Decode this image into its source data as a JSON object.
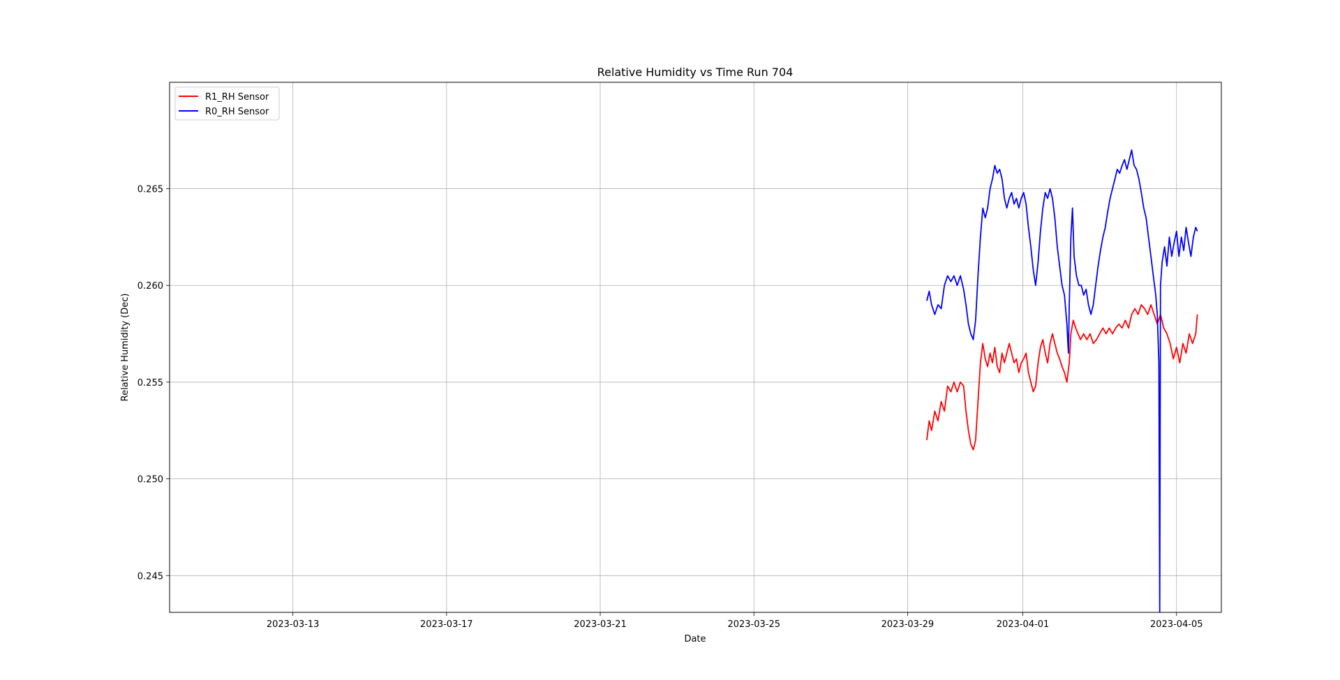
{
  "chart_data": {
    "type": "line",
    "title": "Relative Humidity vs Time Run 704",
    "xlabel": "Date",
    "ylabel": "Relative Humidity (Dec)",
    "xlim": [
      "2023-03-09T19:00",
      "2023-04-06T04:00"
    ],
    "ylim": [
      0.2431,
      0.2705
    ],
    "x_ticks": [
      "2023-03-13",
      "2023-03-17",
      "2023-03-21",
      "2023-03-25",
      "2023-03-29",
      "2023-04-01",
      "2023-04-05"
    ],
    "y_ticks": [
      "0.245",
      "0.250",
      "0.255",
      "0.260",
      "0.265"
    ],
    "grid": true,
    "legend": "upper-left",
    "series": [
      {
        "name": "R1_RH Sensor",
        "color": "#ff0000",
        "points": [
          [
            "2023-03-29T12:00",
            0.252
          ],
          [
            "2023-03-29T13:30",
            0.253
          ],
          [
            "2023-03-29T15:00",
            0.2525
          ],
          [
            "2023-03-29T17:00",
            0.2535
          ],
          [
            "2023-03-29T19:00",
            0.253
          ],
          [
            "2023-03-29T21:00",
            0.254
          ],
          [
            "2023-03-29T23:00",
            0.2535
          ],
          [
            "2023-03-30T01:00",
            0.2548
          ],
          [
            "2023-03-30T03:00",
            0.2545
          ],
          [
            "2023-03-30T05:00",
            0.255
          ],
          [
            "2023-03-30T07:00",
            0.2545
          ],
          [
            "2023-03-30T09:00",
            0.255
          ],
          [
            "2023-03-30T11:00",
            0.2548
          ],
          [
            "2023-03-30T12:30",
            0.2535
          ],
          [
            "2023-03-30T14:00",
            0.2525
          ],
          [
            "2023-03-30T15:30",
            0.2518
          ],
          [
            "2023-03-30T17:00",
            0.2515
          ],
          [
            "2023-03-30T18:30",
            0.252
          ],
          [
            "2023-03-30T20:00",
            0.254
          ],
          [
            "2023-03-30T21:30",
            0.256
          ],
          [
            "2023-03-30T23:00",
            0.257
          ],
          [
            "2023-03-31T00:30",
            0.2562
          ],
          [
            "2023-03-31T02:00",
            0.2558
          ],
          [
            "2023-03-31T03:30",
            0.2565
          ],
          [
            "2023-03-31T05:00",
            0.256
          ],
          [
            "2023-03-31T06:30",
            0.2568
          ],
          [
            "2023-03-31T08:00",
            0.2558
          ],
          [
            "2023-03-31T09:30",
            0.2555
          ],
          [
            "2023-03-31T11:00",
            0.2565
          ],
          [
            "2023-03-31T12:30",
            0.256
          ],
          [
            "2023-03-31T14:00",
            0.2565
          ],
          [
            "2023-03-31T15:30",
            0.257
          ],
          [
            "2023-03-31T17:00",
            0.2565
          ],
          [
            "2023-03-31T18:30",
            0.256
          ],
          [
            "2023-03-31T20:00",
            0.2562
          ],
          [
            "2023-03-31T21:30",
            0.2555
          ],
          [
            "2023-03-31T23:00",
            0.256
          ],
          [
            "2023-04-01T00:30",
            0.2562
          ],
          [
            "2023-04-01T02:00",
            0.2565
          ],
          [
            "2023-04-01T03:30",
            0.2555
          ],
          [
            "2023-04-01T05:00",
            0.255
          ],
          [
            "2023-04-01T06:30",
            0.2545
          ],
          [
            "2023-04-01T08:00",
            0.2548
          ],
          [
            "2023-04-01T09:30",
            0.256
          ],
          [
            "2023-04-01T11:00",
            0.2568
          ],
          [
            "2023-04-01T12:30",
            0.2572
          ],
          [
            "2023-04-01T14:00",
            0.2565
          ],
          [
            "2023-04-01T15:30",
            0.256
          ],
          [
            "2023-04-01T17:00",
            0.257
          ],
          [
            "2023-04-01T18:30",
            0.2575
          ],
          [
            "2023-04-01T20:00",
            0.257
          ],
          [
            "2023-04-01T21:30",
            0.2565
          ],
          [
            "2023-04-01T23:00",
            0.2562
          ],
          [
            "2023-04-02T00:30",
            0.2558
          ],
          [
            "2023-04-02T02:00",
            0.2555
          ],
          [
            "2023-04-02T03:30",
            0.255
          ],
          [
            "2023-04-02T05:00",
            0.256
          ],
          [
            "2023-04-02T06:00",
            0.2575
          ],
          [
            "2023-04-02T07:30",
            0.2582
          ],
          [
            "2023-04-02T09:00",
            0.2578
          ],
          [
            "2023-04-02T10:30",
            0.2575
          ],
          [
            "2023-04-02T12:00",
            0.2572
          ],
          [
            "2023-04-02T14:00",
            0.2575
          ],
          [
            "2023-04-02T16:00",
            0.2572
          ],
          [
            "2023-04-02T18:00",
            0.2575
          ],
          [
            "2023-04-02T20:00",
            0.257
          ],
          [
            "2023-04-02T22:00",
            0.2572
          ],
          [
            "2023-04-03T00:00",
            0.2575
          ],
          [
            "2023-04-03T02:00",
            0.2578
          ],
          [
            "2023-04-03T04:00",
            0.2575
          ],
          [
            "2023-04-03T06:00",
            0.2578
          ],
          [
            "2023-04-03T08:00",
            0.2575
          ],
          [
            "2023-04-03T10:00",
            0.2578
          ],
          [
            "2023-04-03T12:00",
            0.258
          ],
          [
            "2023-04-03T14:00",
            0.2578
          ],
          [
            "2023-04-03T16:00",
            0.2582
          ],
          [
            "2023-04-03T18:00",
            0.2578
          ],
          [
            "2023-04-03T20:00",
            0.2585
          ],
          [
            "2023-04-03T22:00",
            0.2588
          ],
          [
            "2023-04-04T00:00",
            0.2585
          ],
          [
            "2023-04-04T02:00",
            0.259
          ],
          [
            "2023-04-04T04:00",
            0.2588
          ],
          [
            "2023-04-04T06:00",
            0.2585
          ],
          [
            "2023-04-04T08:00",
            0.259
          ],
          [
            "2023-04-04T10:00",
            0.2585
          ],
          [
            "2023-04-04T12:00",
            0.258
          ],
          [
            "2023-04-04T14:00",
            0.2585
          ],
          [
            "2023-04-04T16:00",
            0.2578
          ],
          [
            "2023-04-04T18:00",
            0.2575
          ],
          [
            "2023-04-04T20:00",
            0.257
          ],
          [
            "2023-04-04T22:00",
            0.2562
          ],
          [
            "2023-04-05T00:00",
            0.2568
          ],
          [
            "2023-04-05T02:00",
            0.256
          ],
          [
            "2023-04-05T04:00",
            0.257
          ],
          [
            "2023-04-05T06:00",
            0.2565
          ],
          [
            "2023-04-05T08:00",
            0.2575
          ],
          [
            "2023-04-05T10:00",
            0.257
          ],
          [
            "2023-04-05T12:00",
            0.2575
          ],
          [
            "2023-04-05T13:00",
            0.2585
          ]
        ]
      },
      {
        "name": "R0_RH Sensor",
        "color": "#0000ff",
        "points": [
          [
            "2023-03-29T12:00",
            0.2592
          ],
          [
            "2023-03-29T13:30",
            0.2597
          ],
          [
            "2023-03-29T15:00",
            0.259
          ],
          [
            "2023-03-29T17:00",
            0.2585
          ],
          [
            "2023-03-29T19:00",
            0.259
          ],
          [
            "2023-03-29T21:00",
            0.2588
          ],
          [
            "2023-03-29T23:00",
            0.26
          ],
          [
            "2023-03-30T01:00",
            0.2605
          ],
          [
            "2023-03-30T03:00",
            0.2602
          ],
          [
            "2023-03-30T05:00",
            0.2605
          ],
          [
            "2023-03-30T07:00",
            0.26
          ],
          [
            "2023-03-30T09:00",
            0.2605
          ],
          [
            "2023-03-30T11:00",
            0.2598
          ],
          [
            "2023-03-30T12:30",
            0.259
          ],
          [
            "2023-03-30T14:00",
            0.258
          ],
          [
            "2023-03-30T15:30",
            0.2575
          ],
          [
            "2023-03-30T17:00",
            0.2572
          ],
          [
            "2023-03-30T18:30",
            0.2582
          ],
          [
            "2023-03-30T20:00",
            0.2605
          ],
          [
            "2023-03-30T21:30",
            0.2625
          ],
          [
            "2023-03-30T23:00",
            0.264
          ],
          [
            "2023-03-31T00:30",
            0.2635
          ],
          [
            "2023-03-31T02:00",
            0.264
          ],
          [
            "2023-03-31T03:30",
            0.265
          ],
          [
            "2023-03-31T05:00",
            0.2655
          ],
          [
            "2023-03-31T06:30",
            0.2662
          ],
          [
            "2023-03-31T08:00",
            0.2658
          ],
          [
            "2023-03-31T09:30",
            0.266
          ],
          [
            "2023-03-31T11:00",
            0.2655
          ],
          [
            "2023-03-31T12:30",
            0.2645
          ],
          [
            "2023-03-31T14:00",
            0.264
          ],
          [
            "2023-03-31T15:30",
            0.2645
          ],
          [
            "2023-03-31T17:00",
            0.2648
          ],
          [
            "2023-03-31T18:30",
            0.2642
          ],
          [
            "2023-03-31T20:00",
            0.2645
          ],
          [
            "2023-03-31T21:30",
            0.264
          ],
          [
            "2023-03-31T23:00",
            0.2645
          ],
          [
            "2023-04-01T00:30",
            0.2648
          ],
          [
            "2023-04-01T02:00",
            0.2642
          ],
          [
            "2023-04-01T03:30",
            0.263
          ],
          [
            "2023-04-01T05:00",
            0.262
          ],
          [
            "2023-04-01T06:30",
            0.2608
          ],
          [
            "2023-04-01T08:00",
            0.26
          ],
          [
            "2023-04-01T09:30",
            0.2612
          ],
          [
            "2023-04-01T11:00",
            0.2628
          ],
          [
            "2023-04-01T12:30",
            0.264
          ],
          [
            "2023-04-01T14:00",
            0.2648
          ],
          [
            "2023-04-01T15:30",
            0.2645
          ],
          [
            "2023-04-01T17:00",
            0.265
          ],
          [
            "2023-04-01T18:30",
            0.2645
          ],
          [
            "2023-04-01T20:00",
            0.2635
          ],
          [
            "2023-04-01T21:30",
            0.262
          ],
          [
            "2023-04-01T23:00",
            0.261
          ],
          [
            "2023-04-02T00:30",
            0.26
          ],
          [
            "2023-04-02T02:00",
            0.2595
          ],
          [
            "2023-04-02T03:30",
            0.258
          ],
          [
            "2023-04-02T04:30",
            0.2565
          ],
          [
            "2023-04-02T05:00",
            0.259
          ],
          [
            "2023-04-02T06:00",
            0.2625
          ],
          [
            "2023-04-02T07:00",
            0.264
          ],
          [
            "2023-04-02T08:00",
            0.2615
          ],
          [
            "2023-04-02T09:30",
            0.2605
          ],
          [
            "2023-04-02T11:00",
            0.26
          ],
          [
            "2023-04-02T12:30",
            0.26
          ],
          [
            "2023-04-02T14:00",
            0.2595
          ],
          [
            "2023-04-02T15:30",
            0.2598
          ],
          [
            "2023-04-02T17:00",
            0.259
          ],
          [
            "2023-04-02T18:30",
            0.2585
          ],
          [
            "2023-04-02T20:00",
            0.259
          ],
          [
            "2023-04-02T21:30",
            0.26
          ],
          [
            "2023-04-02T23:00",
            0.261
          ],
          [
            "2023-04-03T00:30",
            0.2618
          ],
          [
            "2023-04-03T02:00",
            0.2625
          ],
          [
            "2023-04-03T03:30",
            0.263
          ],
          [
            "2023-04-03T05:00",
            0.2638
          ],
          [
            "2023-04-03T06:30",
            0.2645
          ],
          [
            "2023-04-03T08:00",
            0.265
          ],
          [
            "2023-04-03T09:30",
            0.2655
          ],
          [
            "2023-04-03T11:00",
            0.266
          ],
          [
            "2023-04-03T12:30",
            0.2658
          ],
          [
            "2023-04-03T14:00",
            0.2662
          ],
          [
            "2023-04-03T15:30",
            0.2665
          ],
          [
            "2023-04-03T17:00",
            0.266
          ],
          [
            "2023-04-03T18:30",
            0.2665
          ],
          [
            "2023-04-03T20:00",
            0.267
          ],
          [
            "2023-04-03T21:30",
            0.2662
          ],
          [
            "2023-04-03T23:00",
            0.266
          ],
          [
            "2023-04-04T00:30",
            0.2655
          ],
          [
            "2023-04-04T02:00",
            0.2648
          ],
          [
            "2023-04-04T03:30",
            0.264
          ],
          [
            "2023-04-04T05:00",
            0.2635
          ],
          [
            "2023-04-04T06:30",
            0.2625
          ],
          [
            "2023-04-04T08:00",
            0.2615
          ],
          [
            "2023-04-04T09:30",
            0.2605
          ],
          [
            "2023-04-04T11:00",
            0.2595
          ],
          [
            "2023-04-04T12:00",
            0.2585
          ],
          [
            "2023-04-04T13:00",
            0.256
          ],
          [
            "2023-04-04T13:30",
            0.2431
          ],
          [
            "2023-04-04T14:00",
            0.26
          ],
          [
            "2023-04-04T15:00",
            0.2612
          ],
          [
            "2023-04-04T16:30",
            0.262
          ],
          [
            "2023-04-04T18:00",
            0.261
          ],
          [
            "2023-04-04T19:30",
            0.2625
          ],
          [
            "2023-04-04T21:00",
            0.2615
          ],
          [
            "2023-04-04T22:30",
            0.2622
          ],
          [
            "2023-04-05T00:00",
            0.2628
          ],
          [
            "2023-04-05T01:30",
            0.2615
          ],
          [
            "2023-04-05T03:00",
            0.2625
          ],
          [
            "2023-04-05T04:30",
            0.2618
          ],
          [
            "2023-04-05T06:00",
            0.263
          ],
          [
            "2023-04-05T07:30",
            0.2622
          ],
          [
            "2023-04-05T09:00",
            0.2615
          ],
          [
            "2023-04-05T10:30",
            0.2625
          ],
          [
            "2023-04-05T12:00",
            0.263
          ],
          [
            "2023-04-05T13:00",
            0.2628
          ]
        ]
      }
    ]
  }
}
